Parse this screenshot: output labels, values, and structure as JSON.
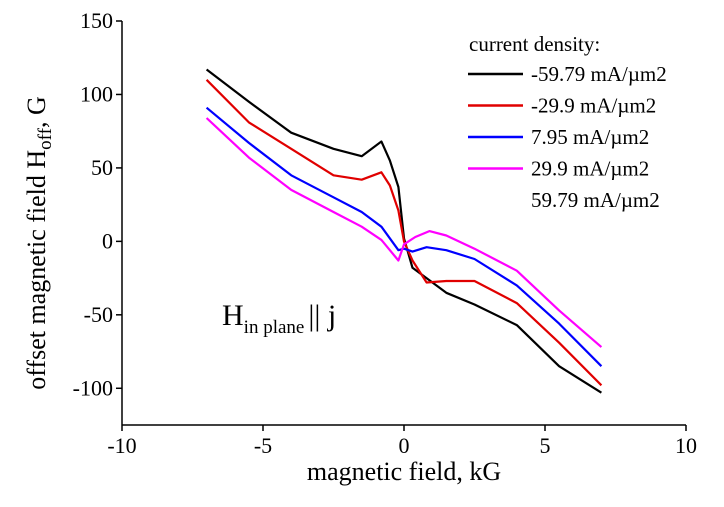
{
  "chart_data": {
    "type": "line",
    "xlabel": "magnetic field, kG",
    "ylabel": {
      "main": "offset magnetic field H",
      "sub": "off",
      "tail": ", G"
    },
    "xlim": [
      -10,
      10
    ],
    "ylim": [
      -125,
      150
    ],
    "xticks": [
      -10,
      -5,
      0,
      5,
      10
    ],
    "yticks": [
      -100,
      -50,
      0,
      50,
      100,
      150
    ],
    "grid": false,
    "legend": {
      "title": "current density:",
      "placement": "top-right",
      "entries": [
        {
          "label": "-59.79 mA/µm2",
          "color": "#000000"
        },
        {
          "label": "-29.9 mA/µm2",
          "color": "#e00000"
        },
        {
          "label": "7.95 mA/µm2",
          "color": "#0000ff"
        },
        {
          "label": "29.9 mA/µm2",
          "color": "#ff00ff"
        },
        {
          "label": "59.79 mA/µm2",
          "color": null
        }
      ]
    },
    "annotation": {
      "main": "H",
      "sub": "in plane",
      "tail": "|| j"
    },
    "series": [
      {
        "label_index": 0,
        "color": "#000000",
        "x": [
          -7,
          -5.5,
          -4,
          -2.5,
          -1.5,
          -0.8,
          -0.5,
          -0.2,
          0,
          0.3,
          1.5,
          2.5,
          4,
          5.5,
          7
        ],
        "y": [
          117,
          95,
          74,
          63,
          58,
          68,
          55,
          37,
          2,
          -18,
          -35,
          -43,
          -57,
          -85,
          -103
        ]
      },
      {
        "label_index": 1,
        "color": "#e00000",
        "x": [
          -7,
          -5.5,
          -4,
          -2.5,
          -1.5,
          -0.8,
          -0.5,
          -0.2,
          0,
          0.3,
          0.8,
          1.5,
          2.5,
          4,
          5.5,
          7
        ],
        "y": [
          110,
          81,
          63,
          45,
          42,
          47,
          38,
          21,
          0,
          -13,
          -28,
          -27,
          -27,
          -42,
          -69,
          -98
        ]
      },
      {
        "label_index": 2,
        "color": "#0000ff",
        "x": [
          -7,
          -5.5,
          -4,
          -2.5,
          -1.5,
          -0.8,
          -0.2,
          0,
          0.3,
          0.8,
          1.5,
          2.5,
          4,
          5.5,
          7
        ],
        "y": [
          91,
          67,
          45,
          30,
          20,
          10,
          -6,
          -5,
          -7,
          -4,
          -6,
          -12,
          -30,
          -56,
          -85
        ]
      },
      {
        "label_index": 3,
        "color": "#ff00ff",
        "x": [
          -7,
          -5.5,
          -4,
          -2.5,
          -1.5,
          -0.8,
          -0.2,
          0,
          0.4,
          0.9,
          1.5,
          2.5,
          4,
          5.5,
          7
        ],
        "y": [
          84,
          57,
          35,
          20,
          10,
          1,
          -13,
          -2,
          3,
          7,
          4,
          -5,
          -20,
          -47,
          -72
        ]
      }
    ]
  }
}
